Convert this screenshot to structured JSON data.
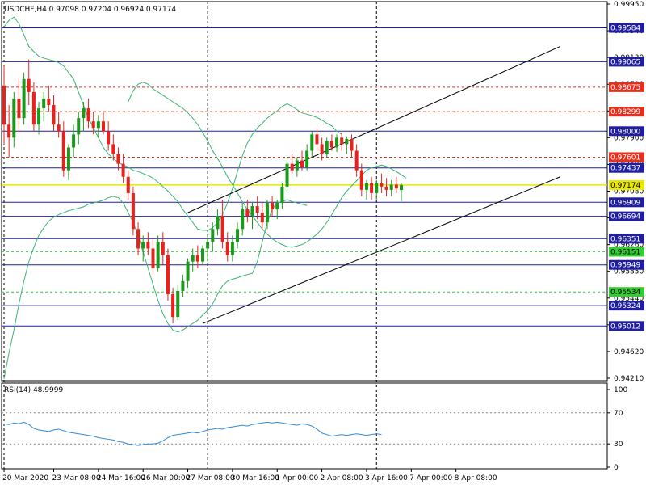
{
  "chart_data": [
    {
      "type": "candlestick",
      "symbol_timeframe": "USDCHF,H4",
      "ohlc_header": [
        "0.97098",
        "0.97204",
        "0.96924",
        "0.97174"
      ],
      "ylim": [
        0.9421,
        0.9995
      ],
      "y_ticks": [
        "0.99950",
        "0.99540",
        "0.99130",
        "0.98720",
        "0.98310",
        "0.97900",
        "0.97490",
        "0.97080",
        "0.96670",
        "0.96260",
        "0.95850",
        "0.95440",
        "0.95030",
        "0.94620",
        "0.94210"
      ],
      "x_ticks": [
        {
          "label": "20 Mar 2020",
          "bar": 0
        },
        {
          "label": "23 Mar 08:00",
          "bar": 10
        },
        {
          "label": "24 Mar 16:00",
          "bar": 19
        },
        {
          "label": "26 Mar 00:00",
          "bar": 28
        },
        {
          "label": "27 Mar 08:00",
          "bar": 37
        },
        {
          "label": "30 Mar 16:00",
          "bar": 46
        },
        {
          "label": "1 Apr 00:00",
          "bar": 55
        },
        {
          "label": "2 Apr 08:00",
          "bar": 64
        },
        {
          "label": "3 Apr 16:00",
          "bar": 73
        },
        {
          "label": "7 Apr 00:00",
          "bar": 82
        },
        {
          "label": "8 Apr 08:00",
          "bar": 91
        }
      ],
      "vlines_bars": [
        0,
        41,
        75
      ],
      "candles": [
        [
          0.987,
          0.99,
          0.978,
          0.981
        ],
        [
          0.981,
          0.984,
          0.976,
          0.979
        ],
        [
          0.979,
          0.986,
          0.9775,
          0.985
        ],
        [
          0.985,
          0.988,
          0.98,
          0.982
        ],
        [
          0.982,
          0.989,
          0.981,
          0.988
        ],
        [
          0.988,
          0.991,
          0.984,
          0.986
        ],
        [
          0.986,
          0.9875,
          0.98,
          0.981
        ],
        [
          0.981,
          0.9845,
          0.9795,
          0.9835
        ],
        [
          0.9835,
          0.986,
          0.9815,
          0.985
        ],
        [
          0.985,
          0.987,
          0.983,
          0.984
        ],
        [
          0.984,
          0.9855,
          0.98,
          0.981
        ],
        [
          0.981,
          0.983,
          0.979,
          0.98
        ],
        [
          0.98,
          0.9815,
          0.973,
          0.974
        ],
        [
          0.974,
          0.978,
          0.9725,
          0.9775
        ],
        [
          0.9775,
          0.981,
          0.976,
          0.9795
        ],
        [
          0.9795,
          0.983,
          0.978,
          0.982
        ],
        [
          0.982,
          0.9845,
          0.98,
          0.9835
        ],
        [
          0.9835,
          0.985,
          0.9805,
          0.9815
        ],
        [
          0.9815,
          0.983,
          0.9795,
          0.9805
        ],
        [
          0.9805,
          0.9825,
          0.979,
          0.9815
        ],
        [
          0.9815,
          0.983,
          0.9795,
          0.98
        ],
        [
          0.98,
          0.9815,
          0.977,
          0.978
        ],
        [
          0.978,
          0.9795,
          0.9755,
          0.9765
        ],
        [
          0.9765,
          0.9775,
          0.974,
          0.975
        ],
        [
          0.975,
          0.9765,
          0.972,
          0.973
        ],
        [
          0.973,
          0.974,
          0.9695,
          0.9705
        ],
        [
          0.9705,
          0.9715,
          0.964,
          0.965
        ],
        [
          0.965,
          0.966,
          0.961,
          0.962
        ],
        [
          0.962,
          0.964,
          0.96,
          0.963
        ],
        [
          0.963,
          0.9645,
          0.961,
          0.962
        ],
        [
          0.962,
          0.9635,
          0.958,
          0.959
        ],
        [
          0.959,
          0.964,
          0.9585,
          0.963
        ],
        [
          0.963,
          0.9645,
          0.9595,
          0.961
        ],
        [
          0.961,
          0.962,
          0.954,
          0.955
        ],
        [
          0.955,
          0.956,
          0.9505,
          0.9515
        ],
        [
          0.9515,
          0.9565,
          0.951,
          0.9555
        ],
        [
          0.9555,
          0.958,
          0.9545,
          0.957
        ],
        [
          0.957,
          0.9605,
          0.956,
          0.96
        ],
        [
          0.96,
          0.962,
          0.9585,
          0.961
        ],
        [
          0.961,
          0.9625,
          0.959,
          0.96
        ],
        [
          0.96,
          0.9625,
          0.9595,
          0.962
        ],
        [
          0.962,
          0.964,
          0.96,
          0.963
        ],
        [
          0.963,
          0.966,
          0.9615,
          0.965
        ],
        [
          0.965,
          0.968,
          0.964,
          0.967
        ],
        [
          0.967,
          0.9695,
          0.962,
          0.963
        ],
        [
          0.963,
          0.9645,
          0.96,
          0.961
        ],
        [
          0.961,
          0.964,
          0.96,
          0.963
        ],
        [
          0.963,
          0.966,
          0.962,
          0.965
        ],
        [
          0.965,
          0.969,
          0.964,
          0.968
        ],
        [
          0.968,
          0.9695,
          0.966,
          0.967
        ],
        [
          0.967,
          0.969,
          0.965,
          0.9685
        ],
        [
          0.9685,
          0.97,
          0.9665,
          0.9675
        ],
        [
          0.9675,
          0.969,
          0.965,
          0.966
        ],
        [
          0.966,
          0.9695,
          0.965,
          0.969
        ],
        [
          0.969,
          0.97,
          0.967,
          0.968
        ],
        [
          0.968,
          0.9695,
          0.9665,
          0.969
        ],
        [
          0.969,
          0.972,
          0.968,
          0.9715
        ],
        [
          0.9715,
          0.976,
          0.9705,
          0.975
        ],
        [
          0.975,
          0.9765,
          0.9735,
          0.974
        ],
        [
          0.974,
          0.976,
          0.973,
          0.9755
        ],
        [
          0.9755,
          0.977,
          0.974,
          0.9745
        ],
        [
          0.9745,
          0.978,
          0.974,
          0.977
        ],
        [
          0.977,
          0.98,
          0.976,
          0.9795
        ],
        [
          0.9795,
          0.9805,
          0.977,
          0.978
        ],
        [
          0.978,
          0.979,
          0.9755,
          0.9765
        ],
        [
          0.9765,
          0.979,
          0.976,
          0.9785
        ],
        [
          0.9785,
          0.9795,
          0.977,
          0.9775
        ],
        [
          0.9775,
          0.9795,
          0.9768,
          0.979
        ],
        [
          0.979,
          0.9798,
          0.977,
          0.978
        ],
        [
          0.978,
          0.9792,
          0.9765,
          0.9788
        ],
        [
          0.9788,
          0.9795,
          0.976,
          0.977
        ],
        [
          0.977,
          0.978,
          0.973,
          0.974
        ],
        [
          0.974,
          0.975,
          0.97,
          0.971
        ],
        [
          0.971,
          0.9725,
          0.9695,
          0.972
        ],
        [
          0.972,
          0.973,
          0.9695,
          0.9705
        ],
        [
          0.9705,
          0.9725,
          0.9695,
          0.972
        ],
        [
          0.972,
          0.9735,
          0.9705,
          0.9715
        ],
        [
          0.9715,
          0.9728,
          0.97,
          0.971
        ],
        [
          0.971,
          0.9725,
          0.97,
          0.9718
        ],
        [
          0.9718,
          0.973,
          0.9705,
          0.9712
        ],
        [
          0.97098,
          0.97204,
          0.96924,
          0.97174
        ]
      ],
      "ma_upper": [
        0.996,
        0.997,
        0.9975,
        0.9965,
        0.9948,
        0.993,
        0.9922,
        0.9915,
        0.9912,
        0.991,
        0.9908,
        0.9905,
        0.99,
        0.989,
        0.988,
        0.986,
        0.984,
        0.982,
        0.9805,
        0.979,
        0.9775,
        0.9765,
        0.9758,
        0.9752,
        0.9748,
        0.9745,
        0.974,
        0.9738,
        0.9735,
        0.9732,
        0.9728,
        0.9722,
        0.9715,
        0.9708,
        0.97,
        0.9692,
        0.968,
        0.967,
        0.966,
        0.965,
        0.9648,
        0.9648,
        0.9652,
        0.966,
        0.9672,
        0.969,
        0.9712,
        0.9738,
        0.9762,
        0.9782,
        0.9795,
        0.9805,
        0.9812,
        0.982,
        0.9826,
        0.9831,
        0.9838,
        0.9842,
        0.9838,
        0.9833,
        0.9828,
        0.9826,
        0.9824,
        0.9821,
        0.9817,
        0.9812,
        0.9808,
        0.98,
        0.9795
      ],
      "ma_mid": [
        0.9845,
        0.9862,
        0.9872,
        0.9875,
        0.9872,
        0.9865,
        0.986,
        0.9855,
        0.985,
        0.9845,
        0.984,
        0.9835,
        0.9828,
        0.982,
        0.981,
        0.9798,
        0.9785,
        0.977,
        0.9758,
        0.9745,
        0.973,
        0.9718,
        0.9705,
        0.9692,
        0.968,
        0.967,
        0.966,
        0.965,
        0.9642,
        0.9635,
        0.963,
        0.9626,
        0.9623,
        0.9622,
        0.9624,
        0.9626,
        0.963,
        0.9636,
        0.9642,
        0.965,
        0.966,
        0.9672,
        0.9685,
        0.9698,
        0.9708,
        0.9716,
        0.9724,
        0.9732,
        0.974,
        0.9744,
        0.9746,
        0.9748,
        0.9746,
        0.9742,
        0.9738,
        0.9733,
        0.9728
      ],
      "ma_lower": [
        0.942,
        0.946,
        0.9495,
        0.9535,
        0.957,
        0.96,
        0.9622,
        0.964,
        0.9652,
        0.9662,
        0.9668,
        0.9672,
        0.9675,
        0.9678,
        0.968,
        0.9682,
        0.9684,
        0.9688,
        0.969,
        0.9692,
        0.9694,
        0.9698,
        0.97,
        0.9698,
        0.969,
        0.9675,
        0.966,
        0.964,
        0.9615,
        0.959,
        0.9565,
        0.954,
        0.952,
        0.9505,
        0.9495,
        0.9492,
        0.9495,
        0.95,
        0.9505,
        0.951,
        0.9518,
        0.9525,
        0.9535,
        0.955,
        0.9563,
        0.957,
        0.9573,
        0.9575,
        0.9578,
        0.958,
        0.9582,
        0.96,
        0.963,
        0.966,
        0.968,
        0.969,
        0.9692,
        0.9695,
        0.9692,
        0.969,
        0.9688,
        0.9686
      ],
      "hlines": [
        {
          "price": 0.99584,
          "label": "0.99584",
          "kind": "blue"
        },
        {
          "price": 0.99065,
          "label": "0.99065",
          "kind": "blue"
        },
        {
          "price": 0.98675,
          "label": "0.98675",
          "kind": "red"
        },
        {
          "price": 0.98299,
          "label": "0.98299",
          "kind": "red"
        },
        {
          "price": 0.98,
          "label": "0.98000",
          "kind": "blue"
        },
        {
          "price": 0.97601,
          "label": "0.97601",
          "kind": "red"
        },
        {
          "price": 0.97437,
          "label": "0.97437",
          "kind": "blue"
        },
        {
          "price": 0.97174,
          "label": "0.97174",
          "kind": "yellow"
        },
        {
          "price": 0.96909,
          "label": "0.96909",
          "kind": "blue"
        },
        {
          "price": 0.96694,
          "label": "0.96694",
          "kind": "blue"
        },
        {
          "price": 0.96351,
          "label": "0.96351",
          "kind": "blue"
        },
        {
          "price": 0.96151,
          "label": "0.96151",
          "kind": "green"
        },
        {
          "price": 0.95949,
          "label": "0.95949",
          "kind": "blue"
        },
        {
          "price": 0.95534,
          "label": "0.95534",
          "kind": "green"
        },
        {
          "price": 0.95324,
          "label": "0.95324",
          "kind": "blue"
        },
        {
          "price": 0.95012,
          "label": "0.95012",
          "kind": "blue"
        }
      ],
      "channel": [
        {
          "from": [
            37,
            0.9675
          ],
          "to": [
            112,
            0.993
          ]
        },
        {
          "from": [
            40,
            0.9505
          ],
          "to": [
            112,
            0.973
          ]
        }
      ],
      "colors": {
        "bull": "#1a9a1a",
        "bear": "#e8211d",
        "blue_line": "#1f1f9e",
        "red_line": "#e0301e",
        "green_line": "#33cc33",
        "ma": "#3cb371",
        "channel": "#000000",
        "rsi": "#2e8bd8",
        "ask_line": "#e8e800"
      }
    },
    {
      "type": "line",
      "indicator": "RSI(14) 48.9999",
      "ylim": [
        0,
        100
      ],
      "y_ticks": [
        "100",
        "70",
        "30",
        "0"
      ],
      "levels": [
        70,
        30
      ],
      "values": [
        56,
        55,
        57,
        56,
        58,
        55,
        50,
        48,
        47,
        46,
        48,
        49,
        47,
        45,
        44,
        43,
        42,
        41,
        40,
        38,
        37,
        36,
        35,
        33,
        32,
        30,
        29,
        28,
        29,
        30,
        30,
        31,
        34,
        38,
        41,
        42,
        43,
        44,
        45,
        44,
        46,
        48,
        49,
        50,
        49,
        51,
        52,
        53,
        54,
        53,
        55,
        56,
        57,
        58,
        57,
        58,
        57,
        56,
        55,
        54,
        56,
        55,
        53,
        49,
        44,
        42,
        40,
        41,
        42,
        41,
        42,
        43,
        42,
        41,
        42,
        43,
        42
      ]
    }
  ]
}
